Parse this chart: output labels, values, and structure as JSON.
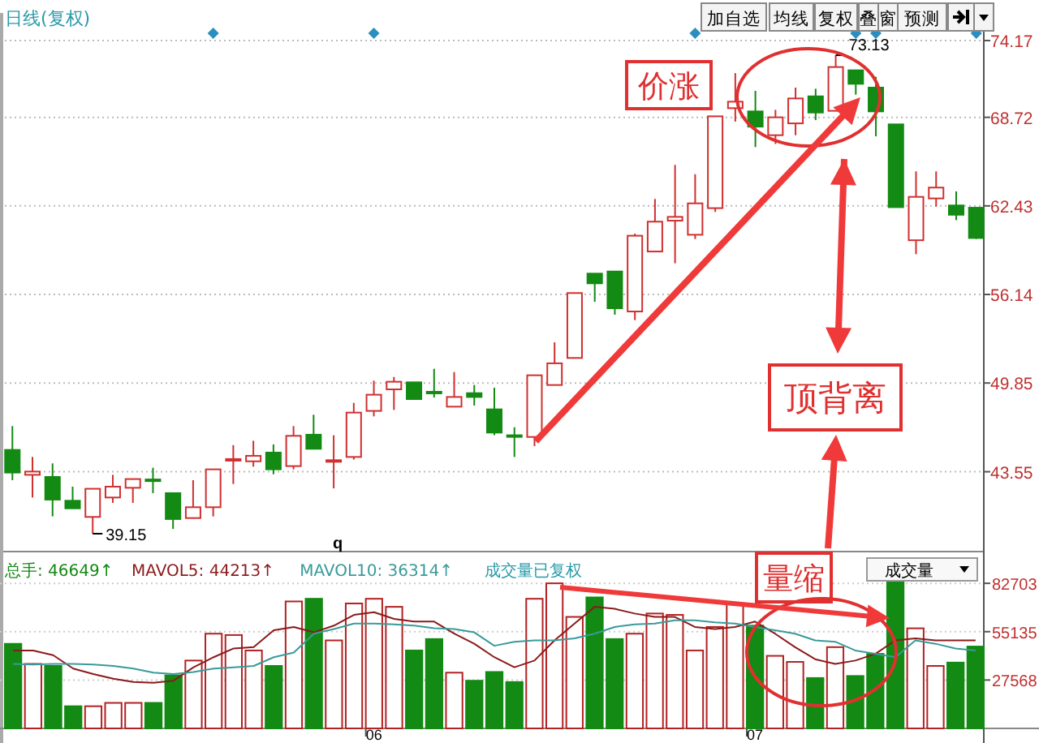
{
  "chart_data": [
    {
      "type": "candlestick",
      "title": "日线(复权)",
      "categories": [
        null,
        null,
        null,
        null,
        null,
        null,
        null,
        null,
        null,
        null,
        null,
        null,
        null,
        null,
        null,
        null,
        null,
        null,
        null,
        null,
        null,
        null,
        null,
        null,
        null,
        null,
        null,
        null,
        null,
        null,
        null,
        null,
        null,
        null,
        null,
        null,
        null,
        null,
        null,
        null,
        null,
        null,
        null,
        null,
        null,
        null,
        null,
        null,
        null
      ],
      "ohlc": [
        [
          45.1,
          46.79,
          42.95,
          43.49
        ],
        [
          43.33,
          44.6,
          41.72,
          43.56
        ],
        [
          43.18,
          44.14,
          40.38,
          41.57
        ],
        [
          41.49,
          42.49,
          40.95,
          40.95
        ],
        [
          40.34,
          42.34,
          39.15,
          42.34
        ],
        [
          41.72,
          43.33,
          41.34,
          42.49
        ],
        [
          42.41,
          43.03,
          41.34,
          43.03
        ],
        [
          43.0,
          43.83,
          42.03,
          42.95
        ],
        [
          42.03,
          42.03,
          39.49,
          40.19
        ],
        [
          40.26,
          42.95,
          40.26,
          41.03
        ],
        [
          41.03,
          43.72,
          40.38,
          43.72
        ],
        [
          44.4,
          45.44,
          42.68,
          44.45
        ],
        [
          44.29,
          45.75,
          43.91,
          44.68
        ],
        [
          44.91,
          45.49,
          43.37,
          43.72
        ],
        [
          43.95,
          46.79,
          43.72,
          46.1
        ],
        [
          46.18,
          47.6,
          45.18,
          45.18
        ],
        [
          44.3,
          46.14,
          42.37,
          44.37
        ],
        [
          44.6,
          48.44,
          44.41,
          47.75
        ],
        [
          47.87,
          50.02,
          47.48,
          49.02
        ],
        [
          49.4,
          50.28,
          47.94,
          49.94
        ],
        [
          49.9,
          49.9,
          48.71,
          48.71
        ],
        [
          49.23,
          50.86,
          48.82,
          49.15
        ],
        [
          48.17,
          50.63,
          48.17,
          48.86
        ],
        [
          49.13,
          49.71,
          48.25,
          48.86
        ],
        [
          47.98,
          49.52,
          46.14,
          46.33
        ],
        [
          46.14,
          46.71,
          44.6,
          46.1
        ],
        [
          46.02,
          50.4,
          45.37,
          50.4
        ],
        [
          49.71,
          52.74,
          49.71,
          51.25
        ],
        [
          51.63,
          56.24,
          51.63,
          56.24
        ],
        [
          57.62,
          57.62,
          55.62,
          56.93
        ],
        [
          57.77,
          57.77,
          54.7,
          55.16
        ],
        [
          54.93,
          60.46,
          54.32,
          60.31
        ],
        [
          59.19,
          62.92,
          59.19,
          61.31
        ],
        [
          61.38,
          65.34,
          58.35,
          61.65
        ],
        [
          60.38,
          64.68,
          60.08,
          62.61
        ],
        [
          62.27,
          68.79,
          62.0,
          68.79
        ],
        [
          69.37,
          71.86,
          68.41,
          69.83
        ],
        [
          69.14,
          70.6,
          66.61,
          68.06
        ],
        [
          67.45,
          69.25,
          66.83,
          68.72
        ],
        [
          68.29,
          70.83,
          67.45,
          70.06
        ],
        [
          70.21,
          70.75,
          68.52,
          69.06
        ],
        [
          69.18,
          73.13,
          69.18,
          72.29
        ],
        [
          72.06,
          72.06,
          70.33,
          71.1
        ],
        [
          70.83,
          71.6,
          67.37,
          69.14
        ],
        [
          68.22,
          68.22,
          62.34,
          62.34
        ],
        [
          59.99,
          64.88,
          59.0,
          63.07
        ],
        [
          62.96,
          64.88,
          62.38,
          63.73
        ],
        [
          62.46,
          63.46,
          61.42,
          61.8
        ],
        [
          62.3,
          62.3,
          60.08,
          60.15
        ]
      ],
      "ylim": [
        37.88,
        76.13
      ],
      "yticks": [
        43.55,
        49.85,
        56.14,
        62.43,
        68.72,
        74.17
      ],
      "grid": "y",
      "tick_labels": "y",
      "annotations": [
        "加自选",
        "均线",
        "复权",
        "叠",
        "窗",
        "预测",
        "价涨",
        "顶背离",
        "73.13",
        "39.15",
        "q"
      ]
    },
    {
      "type": "bar",
      "categories": [
        null,
        null,
        null,
        null,
        null,
        null,
        null,
        null,
        null,
        null,
        null,
        null,
        null,
        null,
        null,
        null,
        null,
        null,
        "06",
        null,
        null,
        null,
        null,
        null,
        null,
        null,
        null,
        null,
        null,
        null,
        null,
        null,
        null,
        null,
        null,
        null,
        null,
        "07",
        null,
        null,
        null,
        null,
        null,
        null,
        null,
        null,
        null,
        null,
        null
      ],
      "series": [
        {
          "name": "总手: 46649↑",
          "color": "#138a13",
          "values": [
            48200,
            36760,
            35610,
            12640,
            12640,
            14550,
            14550,
            14550,
            30250,
            38670,
            53990,
            53220,
            44420,
            35610,
            72370,
            73900,
            50160,
            71220,
            73900,
            69300,
            44420,
            50930,
            31780,
            27190,
            32160,
            26420,
            73900,
            82700,
            63560,
            74670,
            50930,
            53990,
            65480,
            64710,
            44420,
            57820,
            71220,
            58580,
            41350,
            37910,
            28720,
            46330,
            29870,
            42500,
            84620,
            57050,
            35610,
            37520,
            46649
          ],
          "colors": [
            "#138a13",
            "#b22222",
            "#138a13",
            "#138a13",
            "#b22222",
            "#b22222",
            "#b22222",
            "#138a13",
            "#138a13",
            "#b22222",
            "#b22222",
            "#b22222",
            "#b22222",
            "#138a13",
            "#b22222",
            "#138a13",
            "#b22222",
            "#b22222",
            "#b22222",
            "#b22222",
            "#138a13",
            "#138a13",
            "#b22222",
            "#138a13",
            "#138a13",
            "#138a13",
            "#b22222",
            "#b22222",
            "#b22222",
            "#138a13",
            "#138a13",
            "#b22222",
            "#b22222",
            "#b22222",
            "#b22222",
            "#b22222",
            "#b22222",
            "#138a13",
            "#b22222",
            "#b22222",
            "#138a13",
            "#b22222",
            "#138a13",
            "#138a13",
            "#138a13",
            "#b22222",
            "#b22222",
            "#138a13",
            "#138a13"
          ]
        },
        {
          "type": "line",
          "name": "MAVOL5: 44213↑",
          "color": "#8b1a1a",
          "values": [
            44420,
            44420,
            41740,
            34080,
            31010,
            28330,
            26420,
            26040,
            27190,
            34840,
            40590,
            45570,
            46330,
            55900,
            57820,
            54750,
            58580,
            64710,
            66240,
            62410,
            60880,
            60880,
            53990,
            48250,
            40590,
            34840,
            38670,
            50160,
            59730,
            69300,
            68160,
            65480,
            63560,
            63560,
            57820,
            56670,
            57820,
            60880,
            53990,
            46330,
            39440,
            36760,
            38670,
            42500,
            50160,
            51310,
            50160,
            50160,
            50160
          ]
        },
        {
          "type": "line",
          "name": "MAVOL10: 36314↑",
          "color": "#3a9a9a",
          "values": [
            36760,
            36380,
            36760,
            36760,
            36380,
            35610,
            34080,
            31780,
            31010,
            32160,
            34080,
            34840,
            35610,
            40590,
            43270,
            53990,
            56670,
            59730,
            59730,
            59350,
            58580,
            57050,
            56670,
            54750,
            47100,
            49390,
            50160,
            50160,
            51310,
            53990,
            57820,
            59350,
            59730,
            61650,
            61650,
            60500,
            59730,
            57820,
            55900,
            53990,
            50160,
            49390,
            44420,
            42500,
            40590,
            50160,
            48250,
            45570,
            44420
          ]
        }
      ],
      "ylim": [
        0,
        86000
      ],
      "yticks": [
        27568,
        55135,
        82703
      ],
      "grid": "y",
      "legend": "top left",
      "annotations": [
        "量缩",
        "成交量已复权",
        "成交量"
      ]
    }
  ]
}
